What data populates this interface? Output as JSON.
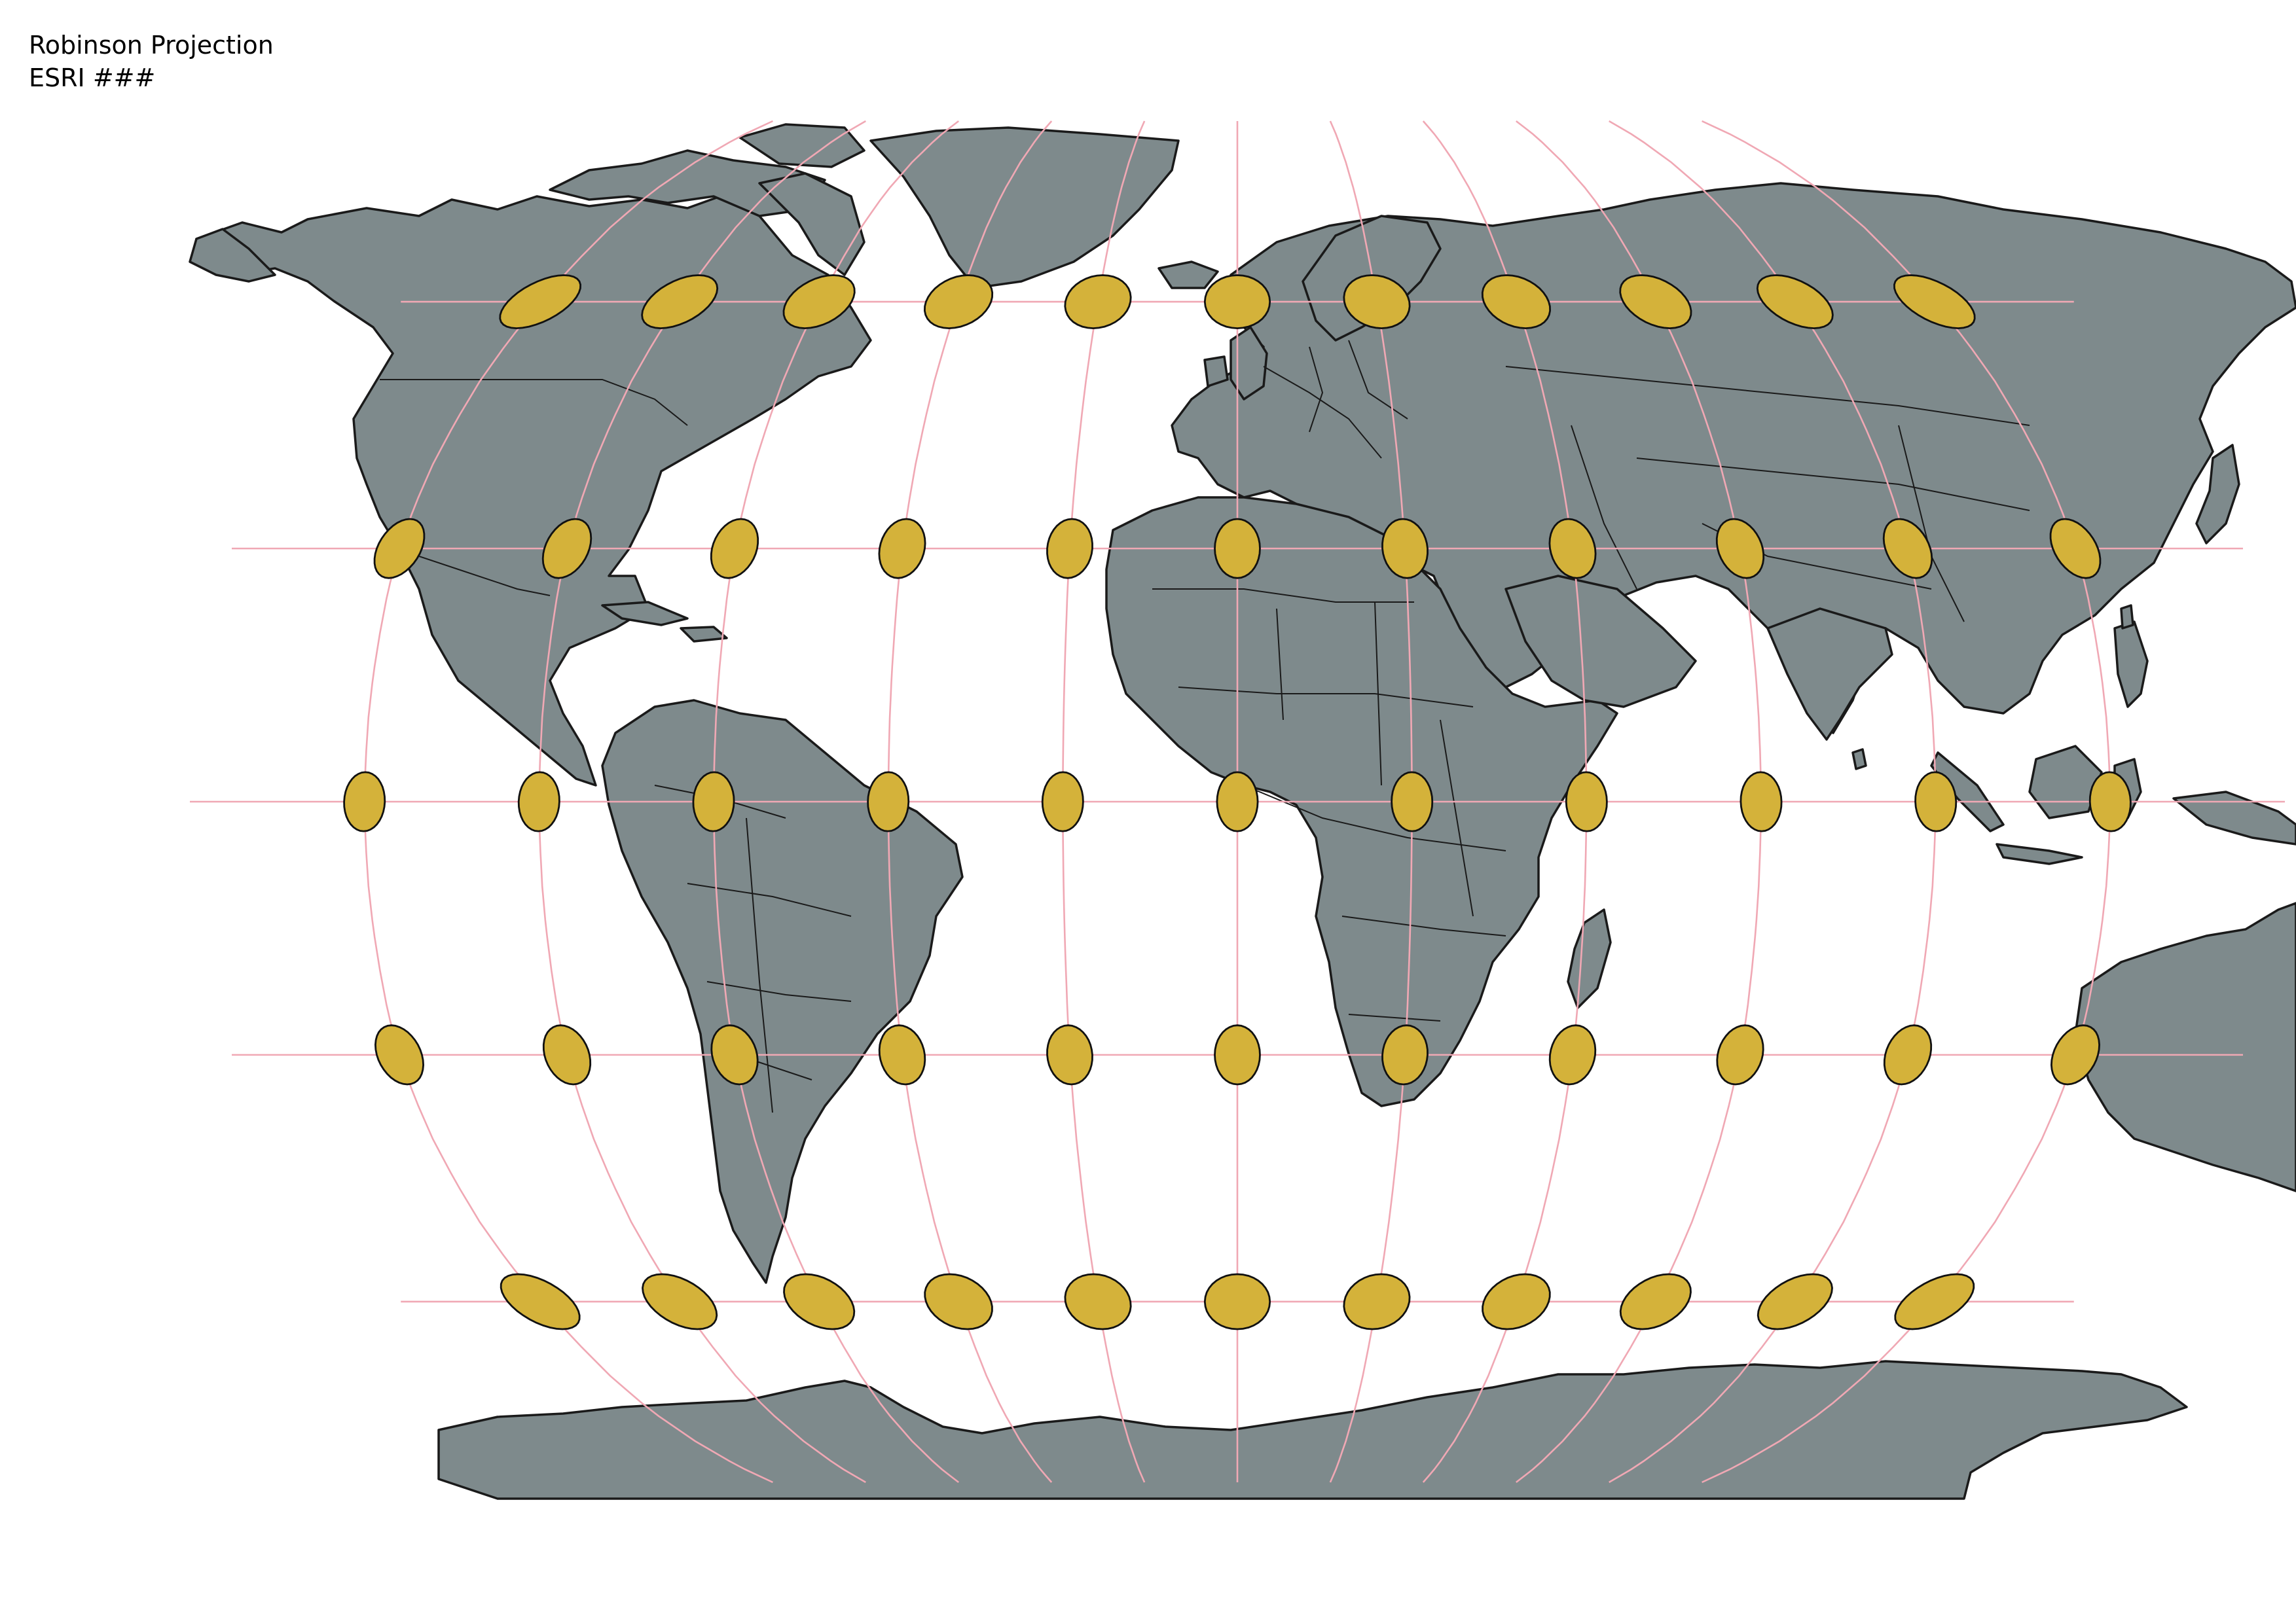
{
  "title": {
    "line1": "Robinson Projection",
    "line2": "ESRI ###"
  },
  "map": {
    "projection": "Robinson",
    "land_color": "#7e8a8c",
    "border_color": "#1a1a1a",
    "graticule_color": "#f0a8b4",
    "indicatrix_color": "#d4b23a",
    "graticule": {
      "latitudes": [
        -60,
        -30,
        0,
        30,
        60
      ],
      "longitudes": [
        -150,
        -120,
        -90,
        -60,
        -30,
        0,
        30,
        60,
        90,
        120,
        150
      ]
    },
    "indicatrix_count": 55
  }
}
